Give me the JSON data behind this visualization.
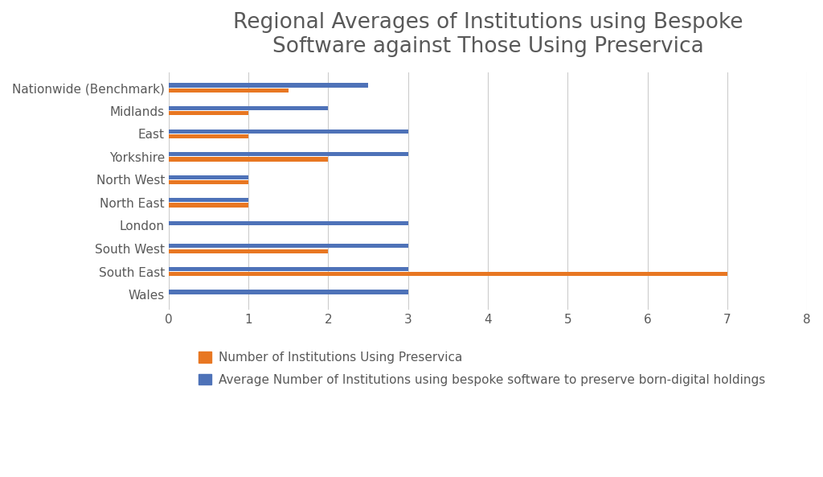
{
  "title": "Regional Averages of Institutions using Bespoke\nSoftware against Those Using Preservica",
  "categories": [
    "Nationwide (Benchmark)",
    "Midlands",
    "East",
    "Yorkshire",
    "North West",
    "North East",
    "London",
    "South West",
    "South East",
    "Wales"
  ],
  "preservica": [
    1.5,
    1.0,
    1.0,
    2.0,
    1.0,
    1.0,
    0.0,
    2.0,
    7.0,
    0.0
  ],
  "bespoke": [
    2.5,
    2.0,
    3.0,
    3.0,
    1.0,
    1.0,
    3.0,
    3.0,
    3.0,
    3.0
  ],
  "preservica_color": "#E87722",
  "bespoke_color": "#4E72B8",
  "background_color": "#FFFFFF",
  "title_color": "#595959",
  "xlim": [
    0,
    8
  ],
  "xticks": [
    0,
    1,
    2,
    3,
    4,
    5,
    6,
    7,
    8
  ],
  "legend_preservica": "Number of Institutions Using Preservica",
  "legend_bespoke": "Average Number of Institutions using bespoke software to preserve born-digital holdings",
  "title_fontsize": 19,
  "tick_fontsize": 11,
  "legend_fontsize": 11,
  "bar_height": 0.18,
  "bar_gap": 0.04
}
